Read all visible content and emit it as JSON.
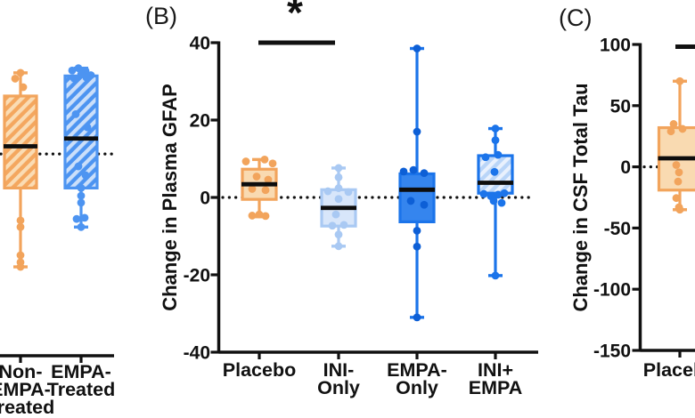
{
  "figure": {
    "background": "#ffffff",
    "colors": {
      "axis": "#111111",
      "median": "#0d0d0d",
      "dotted_line": "#111111",
      "orange_stroke": "#f2a45c",
      "orange_fill": "#f9dab1",
      "orange_hatch_base": "#f4a75f",
      "orange_hatch_stripe": "#fadcb4",
      "blue_pale_stroke": "#a9c9f3",
      "blue_pale_fill": "#d8e6fa",
      "blue_strong": "#1b74ea",
      "blue_solid_fill": "#3585ee",
      "blue_solid_point": "#0d5fd6",
      "blue_hatch_base": "#b9d5f8",
      "blue_hatch_stripe": "#e9f1fd",
      "panelA_blue": "#4d94f1",
      "panelA_blue_stripe": "#cbdffa"
    }
  },
  "chart_data": [
    {
      "id": "A",
      "type": "box",
      "panel_label": "",
      "ylabel": "",
      "ylim": [
        -52.2,
        28.8
      ],
      "yticks": [],
      "zero_line": 0,
      "grid": false,
      "note": "panel partially cropped at left edge; y-axis not visible",
      "categories": [
        [
          "Non-",
          "EMPA-",
          "Treated"
        ],
        [
          "EMPA-",
          "Treated"
        ]
      ],
      "boxes": [
        {
          "group": "Non-EMPA-Treated",
          "style": "orange_hatched",
          "whisker_low": -29.2,
          "q1": -8.8,
          "median": 2.0,
          "q3": 15.0,
          "whisker_high": 21.0,
          "points": [
            [
              0,
              21
            ],
            [
              -6,
              19.5
            ],
            [
              3,
              17.3
            ],
            [
              0,
              -17.2
            ],
            [
              0,
              -18.9
            ],
            [
              0,
              -26.2
            ],
            [
              0,
              -28
            ],
            [
              0,
              -29.2
            ]
          ]
        },
        {
          "group": "EMPA-Treated",
          "style": "blue_hatched_dark",
          "whisker_low": -18.9,
          "q1": -8.8,
          "median": 4.0,
          "q3": 20.2,
          "whisker_high": 22.2,
          "points": [
            [
              -10,
              21.6
            ],
            [
              -3,
              22.2
            ],
            [
              5,
              21.5
            ],
            [
              11,
              20.4
            ],
            [
              -8,
              19.6
            ],
            [
              6,
              19.8
            ],
            [
              0,
              20.6
            ],
            [
              -6,
              10.3
            ],
            [
              7,
              6.9
            ],
            [
              -3,
              -3.2
            ],
            [
              5,
              -5.5
            ],
            [
              0,
              -8.8
            ],
            [
              0,
              -10.8
            ],
            [
              0,
              -12.6
            ],
            [
              -5,
              -16.8
            ],
            [
              4,
              -16.5
            ],
            [
              0,
              -18.9
            ]
          ]
        }
      ]
    },
    {
      "id": "B",
      "type": "box",
      "panel_label": "(B)",
      "ylabel": "Change in Plasma GFAP",
      "ylim": [
        -40,
        40
      ],
      "yticks": [
        40,
        20,
        0,
        -20,
        -40
      ],
      "zero_line": 0,
      "grid": false,
      "significance": {
        "label": "*",
        "from_group": "Placebo",
        "to_group": "INI-Only",
        "bar_visible": true
      },
      "categories": [
        [
          "Placebo"
        ],
        [
          "INI-",
          "Only"
        ],
        [
          "EMPA-",
          "Only"
        ],
        [
          "INI+",
          "EMPA"
        ]
      ],
      "boxes": [
        {
          "group": "Placebo",
          "style": "orange_solid",
          "whisker_low": -5.0,
          "q1": -0.5,
          "median": 3.4,
          "q3": 7.3,
          "whisker_high": 9.8,
          "points": [
            [
              -15,
              9.3
            ],
            [
              6,
              9.8
            ],
            [
              15,
              8.8
            ],
            [
              -3,
              5.4
            ],
            [
              10,
              4.6
            ],
            [
              -8,
              2.2
            ],
            [
              7,
              1.9
            ],
            [
              -8,
              -4.7
            ],
            [
              0,
              -4.4
            ],
            [
              7,
              -4.8
            ]
          ]
        },
        {
          "group": "INI-Only",
          "style": "blue_pale",
          "whisker_low": -12.6,
          "q1": -7.4,
          "median": -2.7,
          "q3": 2.0,
          "whisker_high": 7.6,
          "points": [
            [
              0,
              7.6
            ],
            [
              0,
              5.2
            ],
            [
              0,
              2.4
            ],
            [
              -12,
              1.6
            ],
            [
              11,
              1.4
            ],
            [
              0,
              -0.4
            ],
            [
              -3,
              -4.4
            ],
            [
              -7,
              -7.3
            ],
            [
              6,
              -7.1
            ],
            [
              0,
              -9.6
            ],
            [
              0,
              -12.6
            ]
          ]
        },
        {
          "group": "EMPA-Only",
          "style": "blue_solid",
          "whisker_low": -31.0,
          "q1": -6.3,
          "median": 2.0,
          "q3": 6.1,
          "whisker_high": 38.5,
          "points": [
            [
              0,
              38.5
            ],
            [
              0,
              17
            ],
            [
              -15,
              6.7
            ],
            [
              -4,
              7.1
            ],
            [
              8,
              6.3
            ],
            [
              -7,
              -0.9
            ],
            [
              8,
              -1.9
            ],
            [
              0,
              -8.6
            ],
            [
              0,
              -12.7
            ],
            [
              0,
              -31
            ]
          ]
        },
        {
          "group": "INI+EMPA",
          "style": "blue_hatched",
          "whisker_low": -20.2,
          "q1": 1.1,
          "median": 3.8,
          "q3": 10.8,
          "whisker_high": 17.8,
          "points": [
            [
              0,
              17.8
            ],
            [
              0,
              14.8
            ],
            [
              -11,
              10.4
            ],
            [
              3,
              11
            ],
            [
              -1,
              6.6
            ],
            [
              -13,
              0.9
            ],
            [
              -5,
              0.3
            ],
            [
              3,
              0.7
            ],
            [
              10,
              1.1
            ],
            [
              -2,
              -0.9
            ],
            [
              7,
              -1.4
            ],
            [
              0,
              -20.2
            ]
          ]
        }
      ]
    },
    {
      "id": "C",
      "type": "box",
      "panel_label": "(C)",
      "ylabel": "Change in CSF Total Tau",
      "ylim": [
        -150,
        100
      ],
      "yticks": [
        100,
        50,
        0,
        -50,
        -100,
        -150
      ],
      "zero_line": 0,
      "grid": false,
      "note": "panel cropped at right edge; significance bar partially visible",
      "significance": {
        "label": "",
        "bar_visible": true
      },
      "categories": [
        [
          "Placebo"
        ]
      ],
      "boxes": [
        {
          "group": "Placebo",
          "style": "orange_solid",
          "whisker_low": -35.0,
          "q1": -19.0,
          "median": 7.0,
          "q3": 32.0,
          "whisker_high": 70.0,
          "points": [
            [
              0,
              70
            ],
            [
              -7,
              35
            ],
            [
              3,
              31
            ],
            [
              -10,
              29
            ],
            [
              -4,
              1.5
            ],
            [
              -1,
              -4.5
            ],
            [
              -2,
              -12
            ],
            [
              -4,
              -25.5
            ],
            [
              -1,
              -33
            ],
            [
              0,
              -35
            ]
          ]
        }
      ]
    }
  ]
}
